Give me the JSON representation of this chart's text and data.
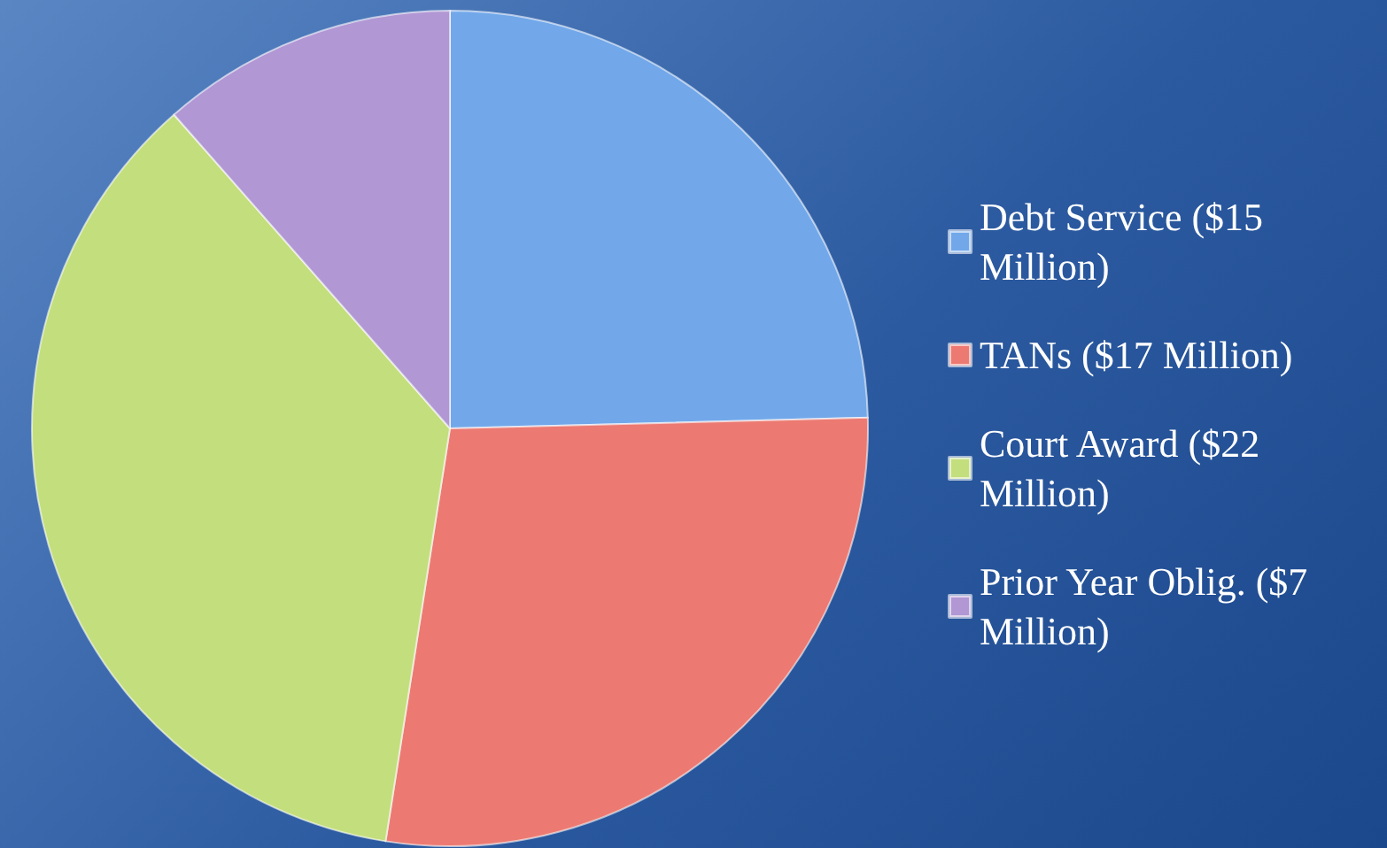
{
  "chart_data": {
    "type": "pie",
    "categories": [
      "Debt Service ($15 Million)",
      "TANs ($17 Million)",
      "Court Award ($22 Million)",
      "Prior Year Oblig. ($7 Million)"
    ],
    "values": [
      15,
      17,
      22,
      7
    ],
    "colors": [
      "#72a8ea",
      "#ec7a72",
      "#c3de7c",
      "#b197d4"
    ],
    "legend": "right"
  }
}
